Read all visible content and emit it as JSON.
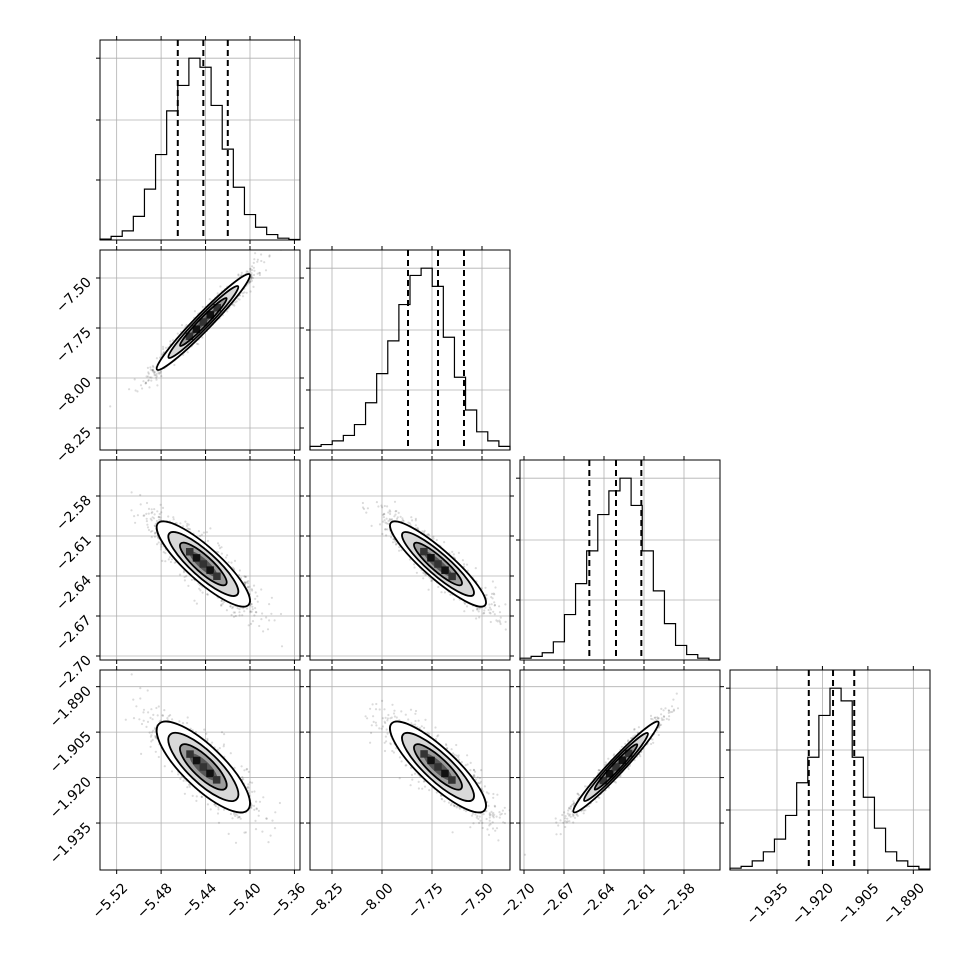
{
  "chart_data": {
    "type": "corner",
    "grid": true,
    "parameters": [
      {
        "range": [
          -5.535,
          -5.355
        ],
        "ticks": [
          -5.52,
          -5.48,
          -5.44,
          -5.4,
          -5.36
        ],
        "tick_labels": [
          "−5.52",
          "−5.48",
          "−5.44",
          "−5.40",
          "−5.36"
        ],
        "quantiles": [
          -5.465,
          -5.442,
          -5.42
        ],
        "mean": -5.442,
        "sd": 0.021,
        "histogram": [
          0.005,
          0.02,
          0.05,
          0.13,
          0.28,
          0.47,
          0.71,
          0.85,
          1.0,
          0.95,
          0.74,
          0.5,
          0.29,
          0.14,
          0.07,
          0.03,
          0.01,
          0.003
        ]
      },
      {
        "range": [
          -8.36,
          -7.36
        ],
        "ticks": [
          -8.25,
          -8.0,
          -7.75,
          -7.5
        ],
        "tick_labels": [
          "−8.25",
          "−8.00",
          "−7.75",
          "−7.50"
        ],
        "quantiles": [
          -7.87,
          -7.72,
          -7.59
        ],
        "mean": -7.72,
        "sd": 0.12,
        "histogram": [
          0.02,
          0.03,
          0.05,
          0.08,
          0.14,
          0.26,
          0.42,
          0.6,
          0.8,
          0.96,
          1.0,
          0.9,
          0.62,
          0.4,
          0.22,
          0.1,
          0.05,
          0.02
        ]
      },
      {
        "range": [
          -2.703,
          -2.553
        ],
        "ticks": [
          -2.7,
          -2.67,
          -2.64,
          -2.61,
          -2.58
        ],
        "tick_labels": [
          "−2.70",
          "−2.67",
          "−2.64",
          "−2.61",
          "−2.58"
        ],
        "quantiles": [
          -2.651,
          -2.631,
          -2.612
        ],
        "mean": -2.631,
        "sd": 0.016,
        "histogram": [
          0.01,
          0.02,
          0.04,
          0.1,
          0.25,
          0.42,
          0.6,
          0.8,
          0.93,
          1.0,
          0.85,
          0.6,
          0.38,
          0.2,
          0.08,
          0.03,
          0.01,
          0.0
        ]
      },
      {
        "range": [
          -1.9505,
          -1.8845
        ],
        "ticks": [
          -1.935,
          -1.92,
          -1.905,
          -1.89
        ],
        "tick_labels": [
          "−1.935",
          "−1.920",
          "−1.905",
          "−1.890"
        ],
        "quantiles": [
          -1.9245,
          -1.9165,
          -1.9095
        ],
        "mean": -1.9165,
        "sd": 0.0075,
        "histogram": [
          0.01,
          0.02,
          0.05,
          0.1,
          0.17,
          0.3,
          0.48,
          0.62,
          0.85,
          1.0,
          0.93,
          0.62,
          0.4,
          0.23,
          0.1,
          0.05,
          0.02,
          0.005
        ]
      }
    ],
    "correlations": {
      "1-0": 0.97,
      "2-0": -0.86,
      "2-1": -0.9,
      "3-0": -0.8,
      "3-1": -0.85,
      "3-2": 0.97
    }
  }
}
